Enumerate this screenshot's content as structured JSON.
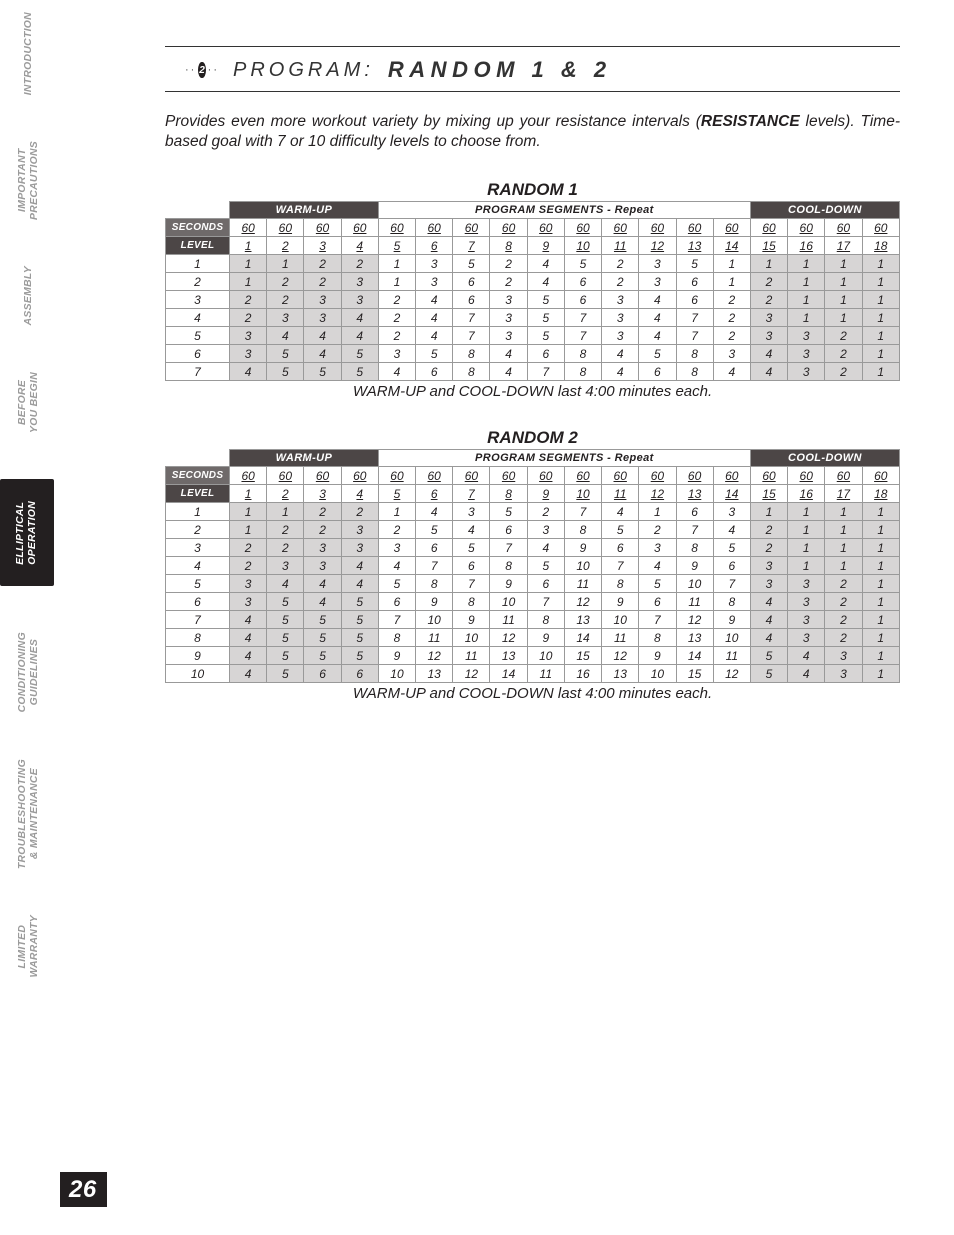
{
  "page_number": "26",
  "sidebar": {
    "tabs": [
      {
        "label": "INTRODUCTION",
        "active": false
      },
      {
        "label": "IMPORTANT\nPRECAUTIONS",
        "active": false
      },
      {
        "label": "ASSEMBLY",
        "active": false
      },
      {
        "label": "BEFORE\nYOU BEGIN",
        "active": false
      },
      {
        "label": "ELLIPTICAL\nOPERATION",
        "active": true
      },
      {
        "label": "CONDITIONING\nGUIDELINES",
        "active": false
      },
      {
        "label": "TROUBLESHOOTING\n& MAINTENANCE",
        "active": false
      },
      {
        "label": "LIMITED\nWARRANTY",
        "active": false
      }
    ]
  },
  "header": {
    "badge_num": "2",
    "label": "PROGRAM:",
    "name": "RANDOM 1 & 2"
  },
  "description": {
    "pre": "Provides even more workout variety by mixing up your resistance intervals (",
    "bold": "RESISTANCE",
    "post": " levels).  Time-based goal with 7 or 10 difficulty levels to choose from."
  },
  "tables": {
    "groups": {
      "warmup": "WARM-UP",
      "segments": "PROGRAM SEGMENTS - Repeat",
      "cooldown": "COOL-DOWN"
    },
    "row_labels": {
      "seconds": "SECONDS",
      "level": "LEVEL"
    },
    "seconds_row": [
      "60",
      "60",
      "60",
      "60",
      "60",
      "60",
      "60",
      "60",
      "60",
      "60",
      "60",
      "60",
      "60",
      "60",
      "60",
      "60",
      "60",
      "60"
    ],
    "level_row": [
      "1",
      "2",
      "3",
      "4",
      "5",
      "6",
      "7",
      "8",
      "9",
      "10",
      "11",
      "12",
      "13",
      "14",
      "15",
      "16",
      "17",
      "18"
    ],
    "note": "WARM-UP and COOL-DOWN last 4:00 minutes each.",
    "shade_cols": [
      0,
      1,
      2,
      3,
      14,
      15,
      16,
      17
    ],
    "random1": {
      "title": "RANDOM 1",
      "rows": [
        [
          "1",
          "1",
          "1",
          "2",
          "2",
          "1",
          "3",
          "5",
          "2",
          "4",
          "5",
          "2",
          "3",
          "5",
          "1",
          "1",
          "1",
          "1",
          "1"
        ],
        [
          "2",
          "1",
          "2",
          "2",
          "3",
          "1",
          "3",
          "6",
          "2",
          "4",
          "6",
          "2",
          "3",
          "6",
          "1",
          "2",
          "1",
          "1",
          "1"
        ],
        [
          "3",
          "2",
          "2",
          "3",
          "3",
          "2",
          "4",
          "6",
          "3",
          "5",
          "6",
          "3",
          "4",
          "6",
          "2",
          "2",
          "1",
          "1",
          "1"
        ],
        [
          "4",
          "2",
          "3",
          "3",
          "4",
          "2",
          "4",
          "7",
          "3",
          "5",
          "7",
          "3",
          "4",
          "7",
          "2",
          "3",
          "1",
          "1",
          "1"
        ],
        [
          "5",
          "3",
          "4",
          "4",
          "4",
          "2",
          "4",
          "7",
          "3",
          "5",
          "7",
          "3",
          "4",
          "7",
          "2",
          "3",
          "3",
          "2",
          "1"
        ],
        [
          "6",
          "3",
          "5",
          "4",
          "5",
          "3",
          "5",
          "8",
          "4",
          "6",
          "8",
          "4",
          "5",
          "8",
          "3",
          "4",
          "3",
          "2",
          "1"
        ],
        [
          "7",
          "4",
          "5",
          "5",
          "5",
          "4",
          "6",
          "8",
          "4",
          "7",
          "8",
          "4",
          "6",
          "8",
          "4",
          "4",
          "3",
          "2",
          "1"
        ]
      ]
    },
    "random2": {
      "title": "RANDOM 2",
      "rows": [
        [
          "1",
          "1",
          "1",
          "2",
          "2",
          "1",
          "4",
          "3",
          "5",
          "2",
          "7",
          "4",
          "1",
          "6",
          "3",
          "1",
          "1",
          "1",
          "1"
        ],
        [
          "2",
          "1",
          "2",
          "2",
          "3",
          "2",
          "5",
          "4",
          "6",
          "3",
          "8",
          "5",
          "2",
          "7",
          "4",
          "2",
          "1",
          "1",
          "1"
        ],
        [
          "3",
          "2",
          "2",
          "3",
          "3",
          "3",
          "6",
          "5",
          "7",
          "4",
          "9",
          "6",
          "3",
          "8",
          "5",
          "2",
          "1",
          "1",
          "1"
        ],
        [
          "4",
          "2",
          "3",
          "3",
          "4",
          "4",
          "7",
          "6",
          "8",
          "5",
          "10",
          "7",
          "4",
          "9",
          "6",
          "3",
          "1",
          "1",
          "1"
        ],
        [
          "5",
          "3",
          "4",
          "4",
          "4",
          "5",
          "8",
          "7",
          "9",
          "6",
          "11",
          "8",
          "5",
          "10",
          "7",
          "3",
          "3",
          "2",
          "1"
        ],
        [
          "6",
          "3",
          "5",
          "4",
          "5",
          "6",
          "9",
          "8",
          "10",
          "7",
          "12",
          "9",
          "6",
          "11",
          "8",
          "4",
          "3",
          "2",
          "1"
        ],
        [
          "7",
          "4",
          "5",
          "5",
          "5",
          "7",
          "10",
          "9",
          "11",
          "8",
          "13",
          "10",
          "7",
          "12",
          "9",
          "4",
          "3",
          "2",
          "1"
        ],
        [
          "8",
          "4",
          "5",
          "5",
          "5",
          "8",
          "11",
          "10",
          "12",
          "9",
          "14",
          "11",
          "8",
          "13",
          "10",
          "4",
          "3",
          "2",
          "1"
        ],
        [
          "9",
          "4",
          "5",
          "5",
          "5",
          "9",
          "12",
          "11",
          "13",
          "10",
          "15",
          "12",
          "9",
          "14",
          "11",
          "5",
          "4",
          "3",
          "1"
        ],
        [
          "10",
          "4",
          "5",
          "6",
          "6",
          "10",
          "13",
          "12",
          "14",
          "11",
          "16",
          "13",
          "10",
          "15",
          "12",
          "5",
          "4",
          "3",
          "1"
        ]
      ]
    }
  }
}
